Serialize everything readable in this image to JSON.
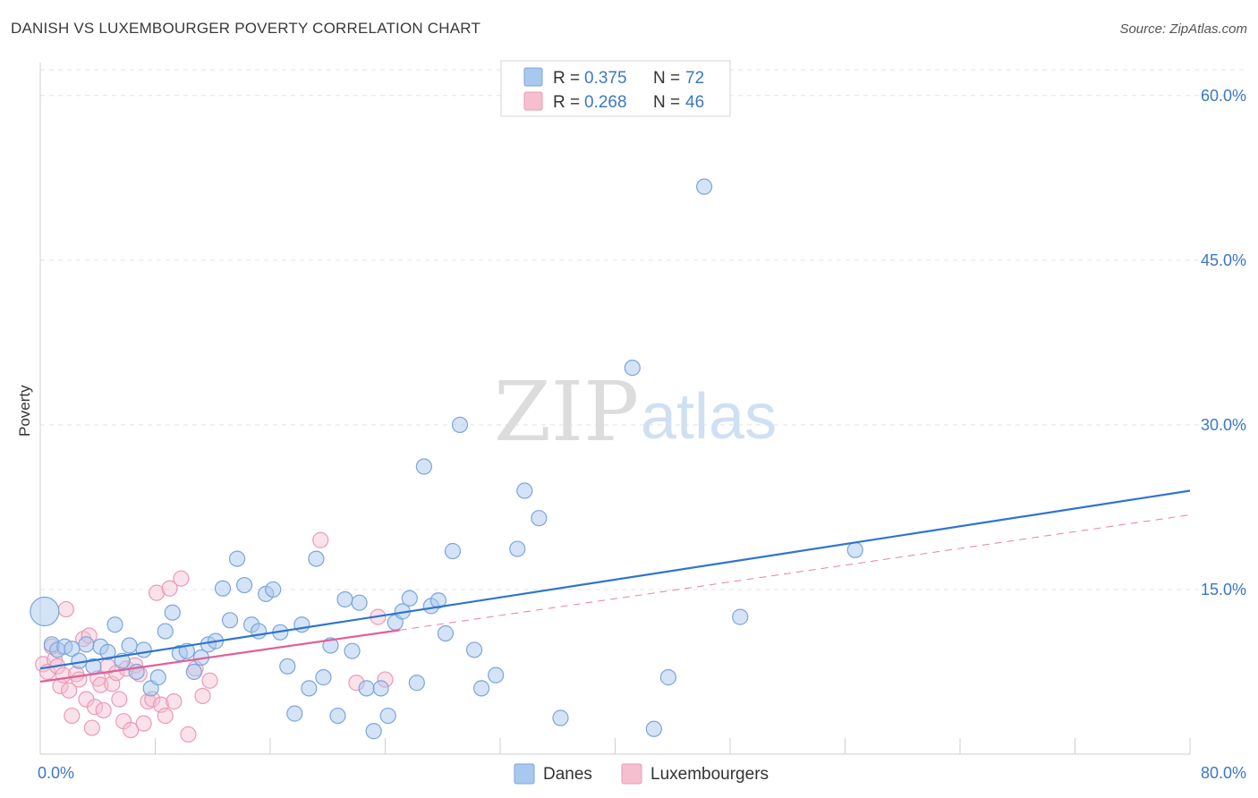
{
  "title": "DANISH VS LUXEMBOURGER POVERTY CORRELATION CHART",
  "source": "Source: ZipAtlas.com",
  "watermark": {
    "zip": "ZIP",
    "atlas": "atlas"
  },
  "colors": {
    "danes": "#a9c8ee",
    "danes_stroke": "#7aa6dc",
    "danes_line": "#2f74d0",
    "lux": "#f5bfd0",
    "lux_stroke": "#ec9ab5",
    "lux_line": "#e0609a",
    "tick": "#3b78c4"
  },
  "legend": {
    "rows": [
      {
        "r_label": "R = ",
        "r_value": "0.375",
        "n_label": "N = ",
        "n_value": "72"
      },
      {
        "r_label": "R = ",
        "r_value": "0.268",
        "n_label": "N = ",
        "n_value": "46"
      }
    ],
    "bottom": [
      "Danes",
      "Luxembourgers"
    ]
  },
  "chart_data": {
    "type": "scatter",
    "title": "DANISH VS LUXEMBOURGER POVERTY CORRELATION CHART",
    "xlabel": "",
    "ylabel": "Poverty",
    "xlim": [
      0,
      80
    ],
    "ylim": [
      0,
      63
    ],
    "x_tick_labels": [
      "0.0%",
      "80.0%"
    ],
    "y_ticks": [
      15,
      30,
      45,
      60
    ],
    "y_tick_labels": [
      "15.0%",
      "30.0%",
      "45.0%",
      "60.0%"
    ],
    "grid": true,
    "legend_position": "top-center",
    "series": [
      {
        "name": "Danes",
        "r": 0.375,
        "n": 72,
        "trend": {
          "x": [
            0,
            80
          ],
          "y": [
            7.8,
            24.0
          ]
        },
        "points": [
          [
            0.3,
            13.0
          ],
          [
            0.8,
            10.0
          ],
          [
            1.2,
            9.5
          ],
          [
            1.7,
            9.8
          ],
          [
            2.2,
            9.6
          ],
          [
            2.7,
            8.5
          ],
          [
            3.2,
            10.0
          ],
          [
            3.7,
            8.0
          ],
          [
            4.2,
            9.8
          ],
          [
            4.7,
            9.3
          ],
          [
            5.2,
            11.8
          ],
          [
            5.7,
            8.5
          ],
          [
            6.2,
            9.9
          ],
          [
            6.7,
            7.5
          ],
          [
            7.2,
            9.5
          ],
          [
            7.7,
            6.0
          ],
          [
            8.2,
            7.0
          ],
          [
            8.7,
            11.2
          ],
          [
            9.2,
            12.9
          ],
          [
            9.7,
            9.2
          ],
          [
            10.2,
            9.4
          ],
          [
            10.7,
            7.5
          ],
          [
            11.2,
            8.8
          ],
          [
            11.7,
            10.0
          ],
          [
            12.2,
            10.3
          ],
          [
            12.7,
            15.1
          ],
          [
            13.2,
            12.2
          ],
          [
            13.7,
            17.8
          ],
          [
            14.2,
            15.4
          ],
          [
            14.7,
            11.8
          ],
          [
            15.2,
            11.2
          ],
          [
            15.7,
            14.6
          ],
          [
            16.2,
            15.0
          ],
          [
            16.7,
            11.1
          ],
          [
            17.2,
            8.0
          ],
          [
            17.7,
            3.7
          ],
          [
            18.2,
            11.8
          ],
          [
            18.7,
            6.0
          ],
          [
            19.2,
            17.8
          ],
          [
            19.7,
            7.0
          ],
          [
            20.2,
            9.9
          ],
          [
            20.7,
            3.5
          ],
          [
            21.2,
            14.1
          ],
          [
            21.7,
            9.4
          ],
          [
            22.2,
            13.8
          ],
          [
            22.7,
            6.0
          ],
          [
            23.2,
            2.1
          ],
          [
            23.7,
            6.0
          ],
          [
            24.2,
            3.5
          ],
          [
            24.7,
            12.0
          ],
          [
            25.2,
            13.0
          ],
          [
            25.7,
            14.2
          ],
          [
            26.2,
            6.5
          ],
          [
            26.7,
            26.2
          ],
          [
            27.2,
            13.5
          ],
          [
            27.7,
            14.0
          ],
          [
            28.2,
            11.0
          ],
          [
            28.7,
            18.5
          ],
          [
            29.2,
            30.0
          ],
          [
            30.2,
            9.5
          ],
          [
            30.7,
            6.0
          ],
          [
            31.7,
            7.2
          ],
          [
            33.2,
            18.7
          ],
          [
            33.7,
            24.0
          ],
          [
            34.7,
            21.5
          ],
          [
            36.2,
            3.3
          ],
          [
            41.2,
            35.2
          ],
          [
            42.7,
            2.3
          ],
          [
            43.7,
            7.0
          ],
          [
            46.2,
            51.7
          ],
          [
            48.7,
            12.5
          ],
          [
            56.7,
            18.6
          ]
        ]
      },
      {
        "name": "Luxembourgers",
        "r": 0.268,
        "n": 46,
        "trend": {
          "x": [
            0,
            25
          ],
          "y": [
            6.6,
            11.3
          ]
        },
        "trend_extended": {
          "x": [
            25,
            80
          ],
          "y": [
            11.3,
            21.8
          ]
        },
        "points": [
          [
            0.2,
            8.2
          ],
          [
            0.5,
            7.5
          ],
          [
            0.8,
            9.8
          ],
          [
            1.0,
            8.6
          ],
          [
            1.2,
            8.0
          ],
          [
            1.4,
            6.2
          ],
          [
            1.6,
            7.2
          ],
          [
            1.8,
            13.2
          ],
          [
            2.0,
            5.8
          ],
          [
            2.2,
            3.5
          ],
          [
            2.5,
            7.3
          ],
          [
            2.7,
            6.8
          ],
          [
            3.0,
            10.5
          ],
          [
            3.2,
            5.0
          ],
          [
            3.4,
            10.8
          ],
          [
            3.6,
            2.4
          ],
          [
            3.8,
            4.3
          ],
          [
            4.0,
            6.9
          ],
          [
            4.2,
            6.3
          ],
          [
            4.4,
            4.0
          ],
          [
            4.7,
            8.0
          ],
          [
            5.0,
            6.4
          ],
          [
            5.3,
            7.4
          ],
          [
            5.5,
            5.0
          ],
          [
            5.8,
            3.0
          ],
          [
            6.0,
            7.8
          ],
          [
            6.3,
            2.2
          ],
          [
            6.6,
            8.1
          ],
          [
            6.9,
            7.3
          ],
          [
            7.2,
            2.8
          ],
          [
            7.5,
            4.8
          ],
          [
            7.8,
            5.0
          ],
          [
            8.1,
            14.7
          ],
          [
            8.4,
            4.5
          ],
          [
            8.7,
            3.5
          ],
          [
            9.0,
            15.1
          ],
          [
            9.3,
            4.8
          ],
          [
            9.8,
            16.0
          ],
          [
            10.3,
            1.8
          ],
          [
            10.8,
            7.8
          ],
          [
            11.3,
            5.3
          ],
          [
            11.8,
            6.7
          ],
          [
            19.5,
            19.5
          ],
          [
            22.0,
            6.5
          ],
          [
            23.5,
            12.5
          ],
          [
            24.0,
            6.8
          ]
        ]
      }
    ]
  }
}
